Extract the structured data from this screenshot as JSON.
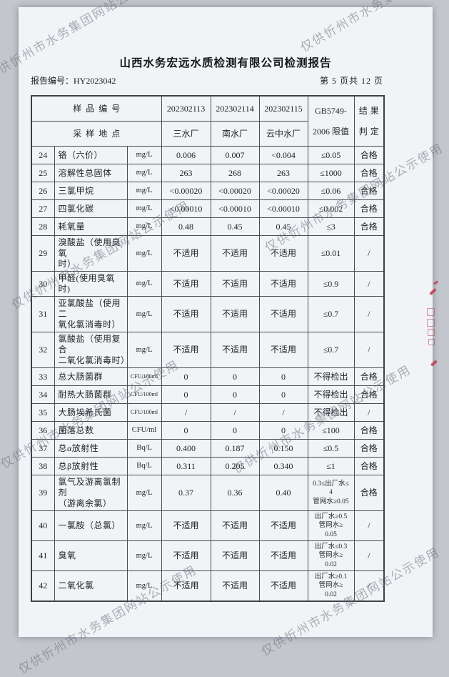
{
  "page": {
    "title": "山西水务宏远水质检测有限公司检测报告",
    "report_number": "报告编号：HY2023042",
    "page_info": "第 5 页共 12 页"
  },
  "watermark": {
    "text": "仅供忻州市水务集团网站公示使用"
  },
  "seal": {
    "color": "#c23a4e"
  },
  "table": {
    "header": {
      "sample_id_label": "样品编号",
      "location_label": "采样地点",
      "sample_ids": [
        "202302113",
        "202302114",
        "202302115"
      ],
      "locations": [
        "三水厂",
        "南水厂",
        "云中水厂"
      ],
      "limit_lines": [
        "GB5749-",
        "2006 限值"
      ],
      "result_lines": [
        "结果",
        "判定"
      ]
    },
    "rows": [
      {
        "no": "24",
        "name": [
          "铬（六价）"
        ],
        "unit": "mg/L",
        "values": [
          "0.006",
          "0.007",
          "<0.004"
        ],
        "limit": [
          "≤0.05"
        ],
        "result": "合格"
      },
      {
        "no": "25",
        "name": [
          "溶解性总固体"
        ],
        "unit": "mg/L",
        "values": [
          "263",
          "268",
          "263"
        ],
        "limit": [
          "≤1000"
        ],
        "result": "合格"
      },
      {
        "no": "26",
        "name": [
          "三氯甲烷"
        ],
        "unit": "mg/L",
        "values": [
          "<0.00020",
          "<0.00020",
          "<0.00020"
        ],
        "limit": [
          "≤0.06"
        ],
        "result": "合格"
      },
      {
        "no": "27",
        "name": [
          "四氯化碳"
        ],
        "unit": "mg/L",
        "values": [
          "<0.00010",
          "<0.00010",
          "<0.00010"
        ],
        "limit": [
          "≤0.002"
        ],
        "result": "合格"
      },
      {
        "no": "28",
        "name": [
          "耗氧量"
        ],
        "unit": "mg/L",
        "values": [
          "0.48",
          "0.45",
          "0.45"
        ],
        "limit": [
          "≤3"
        ],
        "result": "合格"
      },
      {
        "no": "29",
        "name": [
          "溴酸盐（使用臭氧",
          "时）"
        ],
        "unit": "mg/L",
        "values": [
          "不适用",
          "不适用",
          "不适用"
        ],
        "limit": [
          "≤0.01"
        ],
        "result": "/"
      },
      {
        "no": "30",
        "name": [
          "甲醛(使用臭氧时)"
        ],
        "unit": "mg/L",
        "values": [
          "不适用",
          "不适用",
          "不适用"
        ],
        "limit": [
          "≤0.9"
        ],
        "result": "/"
      },
      {
        "no": "31",
        "name": [
          "亚氯酸盐（使用二",
          "氧化氯消毒时）"
        ],
        "unit": "mg/L",
        "values": [
          "不适用",
          "不适用",
          "不适用"
        ],
        "limit": [
          "≤0.7"
        ],
        "result": "/"
      },
      {
        "no": "32",
        "name": [
          "氯酸盐（使用复合",
          "二氧化氯消毒时）"
        ],
        "unit": "mg/L",
        "values": [
          "不适用",
          "不适用",
          "不适用"
        ],
        "limit": [
          "≤0.7"
        ],
        "result": "/"
      },
      {
        "no": "33",
        "name": [
          "总大肠菌群"
        ],
        "unit": "CFU/100ml",
        "values": [
          "0",
          "0",
          "0"
        ],
        "limit": [
          "不得检出"
        ],
        "result": "合格"
      },
      {
        "no": "34",
        "name": [
          "耐热大肠菌群"
        ],
        "unit": "CFU/100ml",
        "values": [
          "0",
          "0",
          "0"
        ],
        "limit": [
          "不得检出"
        ],
        "result": "合格"
      },
      {
        "no": "35",
        "name": [
          "大肠埃希氏菌"
        ],
        "unit": "CFU/100ml",
        "values": [
          "/",
          "/",
          "/"
        ],
        "limit": [
          "不得检出"
        ],
        "result": "/"
      },
      {
        "no": "36",
        "name": [
          "菌落总数"
        ],
        "unit": "CFU/ml",
        "values": [
          "0",
          "0",
          "0"
        ],
        "limit": [
          "≤100"
        ],
        "result": "合格"
      },
      {
        "no": "37",
        "name": [
          "总α放射性"
        ],
        "unit": "Bq/L",
        "values": [
          "0.400",
          "0.187",
          "0.150"
        ],
        "limit": [
          "≤0.5"
        ],
        "result": "合格"
      },
      {
        "no": "38",
        "name": [
          "总β放射性"
        ],
        "unit": "Bq/L",
        "values": [
          "0.311",
          "0.205",
          "0.340"
        ],
        "limit": [
          "≤1"
        ],
        "result": "合格"
      },
      {
        "no": "39",
        "name": [
          "氯气及游离氯制剂",
          "（游离余氯）"
        ],
        "unit": "mg/L",
        "values": [
          "0.37",
          "0.36",
          "0.40"
        ],
        "limit": [
          "0.3≤出厂水≤",
          "4",
          "管网水≥0.05"
        ],
        "result": "合格"
      },
      {
        "no": "40",
        "name": [
          "一氯胺（总氯）"
        ],
        "unit": "mg/L",
        "values": [
          "不适用",
          "不适用",
          "不适用"
        ],
        "limit": [
          "出厂水≥0.5",
          "管网水≥",
          "0.05"
        ],
        "result": "/"
      },
      {
        "no": "41",
        "name": [
          "臭氧"
        ],
        "unit": "mg/L",
        "values": [
          "不适用",
          "不适用",
          "不适用"
        ],
        "limit": [
          "出厂水≤0.3",
          "管网水≥",
          "0.02"
        ],
        "result": "/"
      },
      {
        "no": "42",
        "name": [
          "二氧化氯"
        ],
        "unit": "mg/L",
        "values": [
          "不适用",
          "不适用",
          "不适用"
        ],
        "limit": [
          "出厂水≥0.1",
          "管网水≥",
          "0.02"
        ],
        "result": "/"
      }
    ]
  }
}
